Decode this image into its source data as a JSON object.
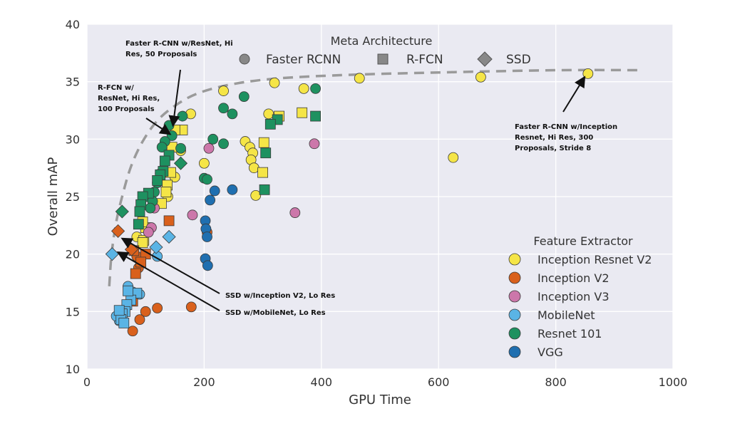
{
  "chart_data": {
    "type": "scatter",
    "xlabel": "GPU Time",
    "ylabel": "Overall mAP",
    "xlim": [
      0,
      1000
    ],
    "ylim": [
      10,
      40
    ],
    "xticks": [
      "0",
      "200",
      "400",
      "600",
      "800",
      "1000"
    ],
    "yticks": [
      "10",
      "15",
      "20",
      "25",
      "30",
      "35",
      "40"
    ],
    "grid": true,
    "meta_legend": {
      "title": "Meta Architecture",
      "items": [
        {
          "label": "Faster RCNN",
          "marker": "circle"
        },
        {
          "label": "R-FCN",
          "marker": "square"
        },
        {
          "label": "SSD",
          "marker": "diamond"
        }
      ]
    },
    "legend": {
      "title": "Feature Extractor",
      "placement": "lower-right",
      "items": [
        {
          "label": "Inception Resnet V2",
          "color": "#f5e547"
        },
        {
          "label": "Inception V2",
          "color": "#d9601c"
        },
        {
          "label": "Inception V3",
          "color": "#cc77aa"
        },
        {
          "label": "MobileNet",
          "color": "#5ab4e5"
        },
        {
          "label": "Resnet 101",
          "color": "#1e9160"
        },
        {
          "label": "VGG",
          "color": "#1f6fb0"
        }
      ]
    },
    "frontier": {
      "style": "dashed",
      "x": [
        38,
        42,
        50,
        60,
        75,
        95,
        120,
        150,
        190,
        250,
        330,
        450,
        600,
        800,
        950
      ],
      "y": [
        17.2,
        20,
        22.8,
        25,
        27.6,
        29.8,
        31.6,
        32.9,
        34,
        34.8,
        35.3,
        35.6,
        35.8,
        36,
        36
      ]
    },
    "annotations": [
      {
        "text": "Faster R-CNN w/ResNet, Hi Res, 50 Proposals",
        "x": 147,
        "y": 31.3
      },
      {
        "text": "R-FCN w/ ResNet, Hi Res, 100 Proposals",
        "x": 140,
        "y": 30.5
      },
      {
        "text": "Faster R-CNN w/Inception Resnet, Hi Res, 300 Proposals, Stride 8",
        "x": 848,
        "y": 35.3
      },
      {
        "text": "SSD w/Inception V2, Lo Res",
        "x": 62,
        "y": 21.3
      },
      {
        "text": "SSD w/MobileNet, Lo Res",
        "x": 55,
        "y": 20.1
      }
    ],
    "series": [
      {
        "name": "Inception Resnet V2",
        "color": "#f5e547",
        "points": [
          {
            "x": 855,
            "y": 35.7,
            "m": "circle"
          },
          {
            "x": 672,
            "y": 35.4,
            "m": "circle"
          },
          {
            "x": 625,
            "y": 28.4,
            "m": "circle"
          },
          {
            "x": 465,
            "y": 35.3,
            "m": "circle"
          },
          {
            "x": 370,
            "y": 34.4,
            "m": "circle"
          },
          {
            "x": 320,
            "y": 34.9,
            "m": "circle"
          },
          {
            "x": 233,
            "y": 34.2,
            "m": "circle"
          },
          {
            "x": 310,
            "y": 32.2,
            "m": "circle"
          },
          {
            "x": 270,
            "y": 29.8,
            "m": "circle"
          },
          {
            "x": 278,
            "y": 29.3,
            "m": "circle"
          },
          {
            "x": 283,
            "y": 28.8,
            "m": "circle"
          },
          {
            "x": 280,
            "y": 28.2,
            "m": "circle"
          },
          {
            "x": 285,
            "y": 27.5,
            "m": "circle"
          },
          {
            "x": 288,
            "y": 25.1,
            "m": "circle"
          },
          {
            "x": 200,
            "y": 27.9,
            "m": "circle"
          },
          {
            "x": 177,
            "y": 32.2,
            "m": "circle"
          },
          {
            "x": 160,
            "y": 29.0,
            "m": "circle"
          },
          {
            "x": 150,
            "y": 26.7,
            "m": "circle"
          },
          {
            "x": 138,
            "y": 25.0,
            "m": "circle"
          },
          {
            "x": 85,
            "y": 21.5,
            "m": "circle"
          },
          {
            "x": 367,
            "y": 32.3,
            "m": "square"
          },
          {
            "x": 328,
            "y": 32.0,
            "m": "square"
          },
          {
            "x": 302,
            "y": 29.7,
            "m": "square"
          },
          {
            "x": 300,
            "y": 27.1,
            "m": "square"
          },
          {
            "x": 163,
            "y": 30.8,
            "m": "square"
          },
          {
            "x": 150,
            "y": 30.8,
            "m": "square"
          },
          {
            "x": 145,
            "y": 29.3,
            "m": "square"
          },
          {
            "x": 143,
            "y": 27.1,
            "m": "square"
          },
          {
            "x": 137,
            "y": 26.0,
            "m": "square"
          },
          {
            "x": 135,
            "y": 25.4,
            "m": "square"
          },
          {
            "x": 127,
            "y": 24.4,
            "m": "square"
          },
          {
            "x": 100,
            "y": 22.3,
            "m": "square"
          },
          {
            "x": 95,
            "y": 22.8,
            "m": "square"
          },
          {
            "x": 97,
            "y": 21.2,
            "m": "square"
          },
          {
            "x": 95,
            "y": 21.0,
            "m": "square"
          }
        ]
      },
      {
        "name": "Inception V2",
        "color": "#d9601c",
        "points": [
          {
            "x": 178,
            "y": 15.4,
            "m": "circle"
          },
          {
            "x": 120,
            "y": 15.3,
            "m": "circle"
          },
          {
            "x": 100,
            "y": 15.0,
            "m": "circle"
          },
          {
            "x": 90,
            "y": 14.3,
            "m": "circle"
          },
          {
            "x": 78,
            "y": 13.3,
            "m": "circle"
          },
          {
            "x": 205,
            "y": 21.9,
            "m": "circle"
          },
          {
            "x": 88,
            "y": 18.8,
            "m": "circle"
          },
          {
            "x": 85,
            "y": 19.8,
            "m": "circle"
          },
          {
            "x": 140,
            "y": 22.9,
            "m": "square"
          },
          {
            "x": 100,
            "y": 20.0,
            "m": "square"
          },
          {
            "x": 92,
            "y": 19.3,
            "m": "square"
          },
          {
            "x": 83,
            "y": 18.3,
            "m": "square"
          },
          {
            "x": 80,
            "y": 20.3,
            "m": "square"
          },
          {
            "x": 78,
            "y": 15.9,
            "m": "square"
          },
          {
            "x": 53,
            "y": 22.0,
            "m": "diamond"
          },
          {
            "x": 76,
            "y": 20.4,
            "m": "diamond"
          }
        ]
      },
      {
        "name": "Inception V3",
        "color": "#cc77aa",
        "points": [
          {
            "x": 388,
            "y": 29.6,
            "m": "circle"
          },
          {
            "x": 355,
            "y": 23.6,
            "m": "circle"
          },
          {
            "x": 208,
            "y": 29.2,
            "m": "circle"
          },
          {
            "x": 180,
            "y": 23.4,
            "m": "circle"
          },
          {
            "x": 115,
            "y": 24.0,
            "m": "circle"
          },
          {
            "x": 110,
            "y": 22.3,
            "m": "circle"
          },
          {
            "x": 105,
            "y": 21.9,
            "m": "circle"
          }
        ]
      },
      {
        "name": "MobileNet",
        "color": "#5ab4e5",
        "points": [
          {
            "x": 90,
            "y": 16.5,
            "m": "circle"
          },
          {
            "x": 78,
            "y": 16.7,
            "m": "circle"
          },
          {
            "x": 70,
            "y": 17.2,
            "m": "circle"
          },
          {
            "x": 65,
            "y": 15.2,
            "m": "circle"
          },
          {
            "x": 60,
            "y": 14.5,
            "m": "circle"
          },
          {
            "x": 55,
            "y": 14.2,
            "m": "circle"
          },
          {
            "x": 50,
            "y": 14.6,
            "m": "circle"
          },
          {
            "x": 120,
            "y": 19.8,
            "m": "circle"
          },
          {
            "x": 85,
            "y": 16.6,
            "m": "square"
          },
          {
            "x": 75,
            "y": 16.0,
            "m": "square"
          },
          {
            "x": 68,
            "y": 15.6,
            "m": "square"
          },
          {
            "x": 65,
            "y": 15.0,
            "m": "square"
          },
          {
            "x": 60,
            "y": 14.8,
            "m": "square"
          },
          {
            "x": 58,
            "y": 14.3,
            "m": "square"
          },
          {
            "x": 55,
            "y": 15.1,
            "m": "square"
          },
          {
            "x": 63,
            "y": 14.0,
            "m": "square"
          },
          {
            "x": 70,
            "y": 16.8,
            "m": "square"
          },
          {
            "x": 43,
            "y": 20.0,
            "m": "diamond"
          },
          {
            "x": 118,
            "y": 20.6,
            "m": "diamond"
          },
          {
            "x": 140,
            "y": 21.5,
            "m": "diamond"
          }
        ]
      },
      {
        "name": "Resnet 101",
        "color": "#1e9160",
        "points": [
          {
            "x": 390,
            "y": 34.4,
            "m": "circle"
          },
          {
            "x": 268,
            "y": 33.7,
            "m": "circle"
          },
          {
            "x": 233,
            "y": 32.7,
            "m": "circle"
          },
          {
            "x": 248,
            "y": 32.2,
            "m": "circle"
          },
          {
            "x": 163,
            "y": 32.0,
            "m": "circle"
          },
          {
            "x": 215,
            "y": 30.0,
            "m": "circle"
          },
          {
            "x": 233,
            "y": 29.6,
            "m": "circle"
          },
          {
            "x": 200,
            "y": 26.6,
            "m": "circle"
          },
          {
            "x": 205,
            "y": 26.5,
            "m": "circle"
          },
          {
            "x": 140,
            "y": 31.2,
            "m": "circle"
          },
          {
            "x": 145,
            "y": 30.3,
            "m": "circle"
          },
          {
            "x": 133,
            "y": 29.8,
            "m": "circle"
          },
          {
            "x": 128,
            "y": 29.3,
            "m": "circle"
          },
          {
            "x": 125,
            "y": 27.0,
            "m": "circle"
          },
          {
            "x": 120,
            "y": 26.2,
            "m": "circle"
          },
          {
            "x": 115,
            "y": 25.4,
            "m": "circle"
          },
          {
            "x": 112,
            "y": 24.6,
            "m": "circle"
          },
          {
            "x": 108,
            "y": 24.0,
            "m": "circle"
          },
          {
            "x": 160,
            "y": 29.2,
            "m": "circle"
          },
          {
            "x": 390,
            "y": 32.0,
            "m": "square"
          },
          {
            "x": 325,
            "y": 31.7,
            "m": "square"
          },
          {
            "x": 313,
            "y": 31.3,
            "m": "square"
          },
          {
            "x": 305,
            "y": 28.8,
            "m": "square"
          },
          {
            "x": 303,
            "y": 25.6,
            "m": "square"
          },
          {
            "x": 140,
            "y": 28.6,
            "m": "square"
          },
          {
            "x": 133,
            "y": 28.1,
            "m": "square"
          },
          {
            "x": 130,
            "y": 27.2,
            "m": "square"
          },
          {
            "x": 125,
            "y": 26.9,
            "m": "square"
          },
          {
            "x": 120,
            "y": 26.4,
            "m": "square"
          },
          {
            "x": 105,
            "y": 25.3,
            "m": "square"
          },
          {
            "x": 95,
            "y": 25.0,
            "m": "square"
          },
          {
            "x": 92,
            "y": 24.3,
            "m": "square"
          },
          {
            "x": 90,
            "y": 23.7,
            "m": "square"
          },
          {
            "x": 88,
            "y": 22.6,
            "m": "square"
          },
          {
            "x": 60,
            "y": 23.7,
            "m": "diamond"
          },
          {
            "x": 160,
            "y": 27.9,
            "m": "diamond"
          }
        ]
      },
      {
        "name": "VGG",
        "color": "#1f6fb0",
        "points": [
          {
            "x": 248,
            "y": 25.6,
            "m": "circle"
          },
          {
            "x": 218,
            "y": 25.5,
            "m": "circle"
          },
          {
            "x": 210,
            "y": 24.7,
            "m": "circle"
          },
          {
            "x": 202,
            "y": 22.9,
            "m": "circle"
          },
          {
            "x": 203,
            "y": 22.2,
            "m": "circle"
          },
          {
            "x": 205,
            "y": 21.5,
            "m": "circle"
          },
          {
            "x": 202,
            "y": 19.6,
            "m": "circle"
          },
          {
            "x": 206,
            "y": 19.0,
            "m": "circle"
          }
        ]
      }
    ]
  }
}
